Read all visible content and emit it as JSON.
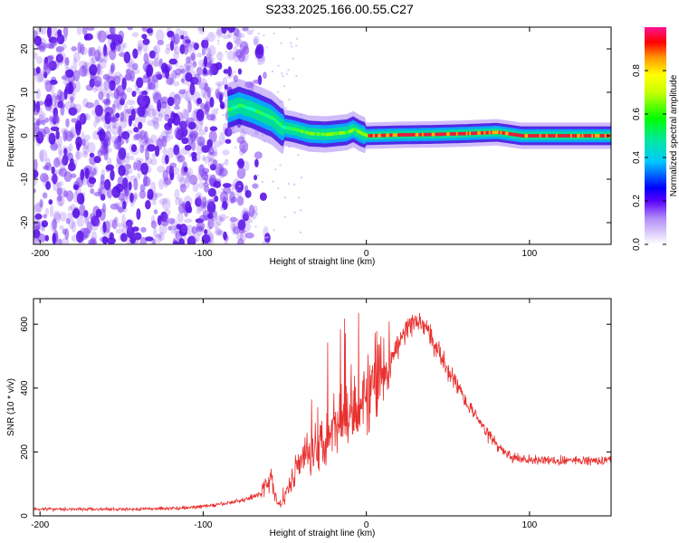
{
  "title": "S233.2025.166.00.55.C27",
  "colors": {
    "signal": "#e8312f",
    "spectrum_noise": "#7d3cf0",
    "track_core": "#e81c3c",
    "axis": "#000000"
  },
  "chart_data": [
    {
      "type": "heatmap",
      "xlabel": "Height of straight line (km)",
      "ylabel": "Frequency (Hz)",
      "xlim": [
        -204,
        150
      ],
      "ylim": [
        -25,
        25
      ],
      "x_ticks": [
        -200,
        -100,
        0,
        100
      ],
      "y_ticks": [
        -20,
        -10,
        0,
        10,
        20
      ],
      "colorbar": {
        "label": "Normalized spectral amplitude",
        "range": [
          0,
          1
        ],
        "ticks": [
          "0.0",
          "0.2",
          "0.4",
          "0.6",
          "0.8"
        ],
        "colormap": "rainbow"
      },
      "track": [
        {
          "x": -85,
          "y": 6
        },
        {
          "x": -78,
          "y": 7
        },
        {
          "x": -70,
          "y": 6
        },
        {
          "x": -64,
          "y": 5
        },
        {
          "x": -58,
          "y": 4
        },
        {
          "x": -52,
          "y": 2
        },
        {
          "x": -45,
          "y": 1.5
        },
        {
          "x": -35,
          "y": 0.5
        },
        {
          "x": -25,
          "y": 0.3
        },
        {
          "x": -12,
          "y": 0.8
        },
        {
          "x": -8,
          "y": 1.5
        },
        {
          "x": -4,
          "y": 0.6
        },
        {
          "x": 0,
          "y": 0
        },
        {
          "x": 20,
          "y": 0.2
        },
        {
          "x": 40,
          "y": 0.3
        },
        {
          "x": 60,
          "y": 0.5
        },
        {
          "x": 80,
          "y": 0.8
        },
        {
          "x": 95,
          "y": 0
        },
        {
          "x": 120,
          "y": 0
        },
        {
          "x": 150,
          "y": 0
        }
      ]
    },
    {
      "type": "line",
      "xlabel": "Height of straight line (km)",
      "ylabel": "SNR (10 * v/v)",
      "xlim": [
        -204,
        150
      ],
      "ylim": [
        0,
        680
      ],
      "x_ticks": [
        -200,
        -100,
        0,
        100
      ],
      "y_ticks": [
        0,
        200,
        400,
        600
      ],
      "series": [
        {
          "x": [
            -204,
            -150,
            -110,
            -90,
            -75,
            -65,
            -58,
            -55,
            -52,
            -50,
            -45,
            -40,
            -35,
            -30,
            -25,
            -20,
            -15,
            -10,
            -5,
            0,
            10,
            20,
            25,
            30,
            35,
            40,
            50,
            60,
            70,
            80,
            90,
            100,
            120,
            150
          ],
          "values": [
            22,
            20,
            25,
            35,
            50,
            70,
            120,
            50,
            30,
            60,
            130,
            170,
            200,
            220,
            250,
            280,
            310,
            330,
            350,
            370,
            430,
            540,
            590,
            605,
            600,
            560,
            460,
            370,
            290,
            220,
            180,
            175,
            172,
            175
          ]
        }
      ]
    }
  ]
}
